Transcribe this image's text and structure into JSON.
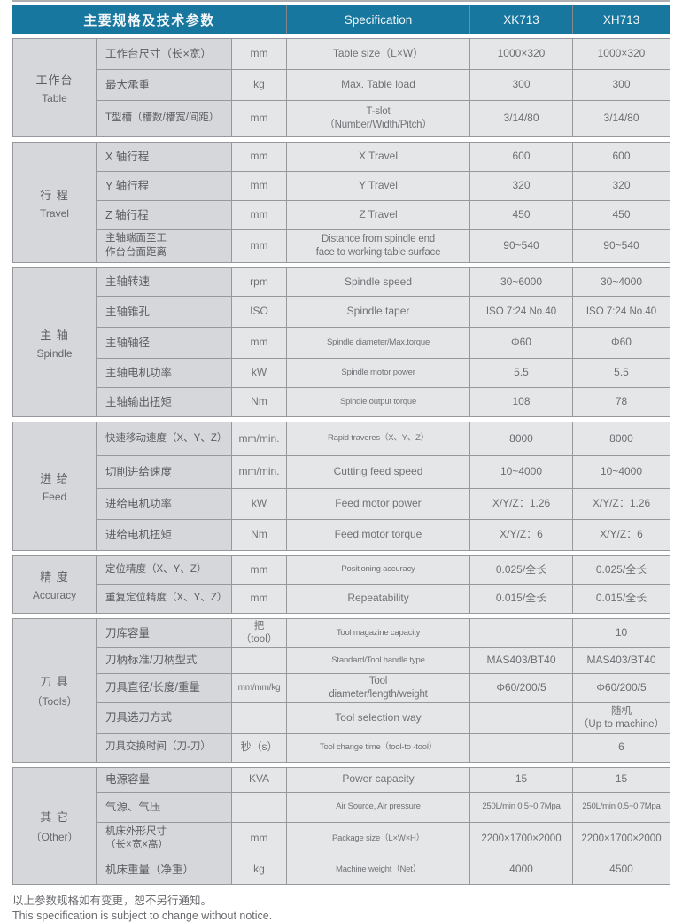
{
  "header": {
    "params": "主要规格及技术参数",
    "spec": "Specification",
    "xk": "XK713",
    "xh": "XH713"
  },
  "sections": [
    {
      "group_cn": "工作台",
      "group_en": "Table",
      "rows": [
        {
          "name": "工作台尺寸（长×宽）",
          "unit": "mm",
          "spec": "Table size（L×W）",
          "xk": "1000×320",
          "xh": "1000×320"
        },
        {
          "name": "最大承重",
          "unit": "kg",
          "spec": "Max. Table load",
          "xk": "300",
          "xh": "300"
        },
        {
          "name": "T型槽（槽数/槽宽/间距）",
          "unit": "mm",
          "spec": "T-slot\n（Number/Width/Pitch）",
          "xk": "3/14/80",
          "xh": "3/14/80"
        }
      ]
    },
    {
      "group_cn": "行 程",
      "group_en": "Travel",
      "rows": [
        {
          "name": "X 轴行程",
          "unit": "mm",
          "spec": "X Travel",
          "xk": "600",
          "xh": "600"
        },
        {
          "name": "Y 轴行程",
          "unit": "mm",
          "spec": "Y Travel",
          "xk": "320",
          "xh": "320"
        },
        {
          "name": "Z 轴行程",
          "unit": "mm",
          "spec": "Z Travel",
          "xk": "450",
          "xh": "450"
        },
        {
          "name": "主轴端面至工\n作台台面距离",
          "unit": "mm",
          "spec": "Distance from spindle end\nface to working table surface",
          "xk": "90~540",
          "xh": "90~540"
        }
      ]
    },
    {
      "group_cn": "主 轴",
      "group_en": "Spindle",
      "rows": [
        {
          "name": "主轴转速",
          "unit": "rpm",
          "spec": "Spindle speed",
          "xk": "30~6000",
          "xh": "30~4000"
        },
        {
          "name": "主轴锥孔",
          "unit": "ISO",
          "spec": "Spindle taper",
          "xk": "ISO 7:24  No.40",
          "xh": "ISO 7:24  No.40"
        },
        {
          "name": "主轴轴径",
          "unit": "mm",
          "spec": "Spindle diameter/Max.torque",
          "xk": "Φ60",
          "xh": "Φ60"
        },
        {
          "name": "主轴电机功率",
          "unit": "kW",
          "spec": "Spindle motor power",
          "xk": "5.5",
          "xh": "5.5"
        },
        {
          "name": "主轴输出扭矩",
          "unit": "Nm",
          "spec": "Spindle output torque",
          "xk": "108",
          "xh": "78"
        }
      ]
    },
    {
      "group_cn": "进 给",
      "group_en": "Feed",
      "rows": [
        {
          "name": "快速移动速度（X、Y、Z）",
          "unit": "mm/min.",
          "spec": "Rapid traveres（X、Y、Z）",
          "xk": "8000",
          "xh": "8000"
        },
        {
          "name": "切削进给速度",
          "unit": "mm/min.",
          "spec": "Cutting feed speed",
          "xk": "10~4000",
          "xh": "10~4000"
        },
        {
          "name": "进给电机功率",
          "unit": "kW",
          "spec": "Feed motor power",
          "xk": "X/Y/Z：1.26",
          "xh": "X/Y/Z：1.26"
        },
        {
          "name": "进给电机扭矩",
          "unit": "Nm",
          "spec": "Feed motor torque",
          "xk": "X/Y/Z：6",
          "xh": "X/Y/Z：6"
        }
      ]
    },
    {
      "group_cn": "精 度",
      "group_en": "Accuracy",
      "rows": [
        {
          "name": "定位精度（X、Y、Z）",
          "unit": "mm",
          "spec": "Positioning accuracy",
          "xk": "0.025/全长",
          "xh": "0.025/全长"
        },
        {
          "name": "重复定位精度（X、Y、Z）",
          "unit": "mm",
          "spec": "Repeatability",
          "xk": "0.015/全长",
          "xh": "0.015/全长"
        }
      ]
    },
    {
      "group_cn": "刀 具",
      "group_en": "（Tools）",
      "rows": [
        {
          "name": "刀库容量",
          "unit": "把\n（tool）",
          "spec": "Tool magazine capacity",
          "xk": "",
          "xh": "10"
        },
        {
          "name": "刀柄标准/刀柄型式",
          "unit": "",
          "spec": "Standard/Tool handle type",
          "xk": "MAS403/BT40",
          "xh": "MAS403/BT40"
        },
        {
          "name": "刀具直径/长度/重量",
          "unit": "mm/mm/kg",
          "spec": "Tool\ndiameter/length/weight",
          "xk": "Φ60/200/5",
          "xh": "Φ60/200/5"
        },
        {
          "name": "刀具选刀方式",
          "unit": "",
          "spec": "Tool selection way",
          "xk": "",
          "xh": "随机\n（Up to machine）"
        },
        {
          "name": "刀具交换时间（刀-刀）",
          "unit": "秒（s）",
          "spec": "Tool change time（tool-to -tool）",
          "xk": "",
          "xh": "6"
        }
      ]
    },
    {
      "group_cn": "其 它",
      "group_en": "（Other）",
      "rows": [
        {
          "name": "电源容量",
          "unit": "KVA",
          "spec": "Power capacity",
          "xk": "15",
          "xh": "15"
        },
        {
          "name": "气源、气压",
          "unit": "",
          "spec": "Air Source, Air pressure",
          "xk": "250L/min  0.5~0.7Mpa",
          "xh": "250L/min  0.5~0.7Mpa"
        },
        {
          "name": "机床外形尺寸\n（长×宽×高）",
          "unit": "mm",
          "spec": "Package size（L×W×H）",
          "xk": "2200×1700×2000",
          "xh": "2200×1700×2000"
        },
        {
          "name": "机床重量（净重）",
          "unit": "kg",
          "spec": "Machine weight（Net）",
          "xk": "4000",
          "xh": "4500"
        }
      ]
    }
  ],
  "footer": {
    "note_cn": "以上参数规格如有变更，恕不另行通知。",
    "note_en": "This specification is subject  to change without notice."
  }
}
